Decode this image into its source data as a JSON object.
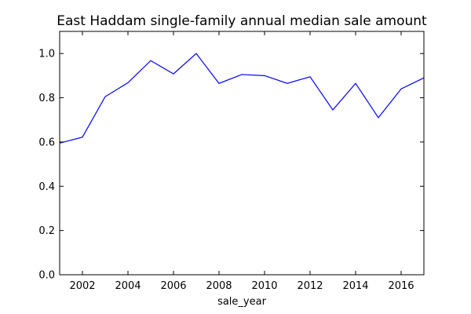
{
  "chart_data": {
    "type": "line",
    "title": "East Haddam single-family annual median sale amount",
    "xlabel": "sale_year",
    "ylabel": "",
    "xlim": [
      2001,
      2017
    ],
    "ylim": [
      0.0,
      1.1
    ],
    "x_ticks": [
      2002,
      2004,
      2006,
      2008,
      2010,
      2012,
      2014,
      2016
    ],
    "x_tick_labels": [
      "2002",
      "2004",
      "2006",
      "2008",
      "2010",
      "2012",
      "2014",
      "2016"
    ],
    "y_ticks": [
      0.0,
      0.2,
      0.4,
      0.6,
      0.8,
      1.0
    ],
    "y_tick_labels": [
      "0.0",
      "0.2",
      "0.4",
      "0.6",
      "0.8",
      "1.0"
    ],
    "grid": false,
    "series": [
      {
        "color": "#0000ff",
        "x": [
          2001,
          2002,
          2003,
          2004,
          2005,
          2006,
          2007,
          2008,
          2009,
          2010,
          2011,
          2012,
          2013,
          2014,
          2015,
          2016,
          2017
        ],
        "values": [
          0.595,
          0.622,
          0.805,
          0.868,
          0.968,
          0.908,
          1.0,
          0.865,
          0.905,
          0.9,
          0.865,
          0.895,
          0.745,
          0.865,
          0.71,
          0.84,
          0.89
        ]
      }
    ]
  }
}
